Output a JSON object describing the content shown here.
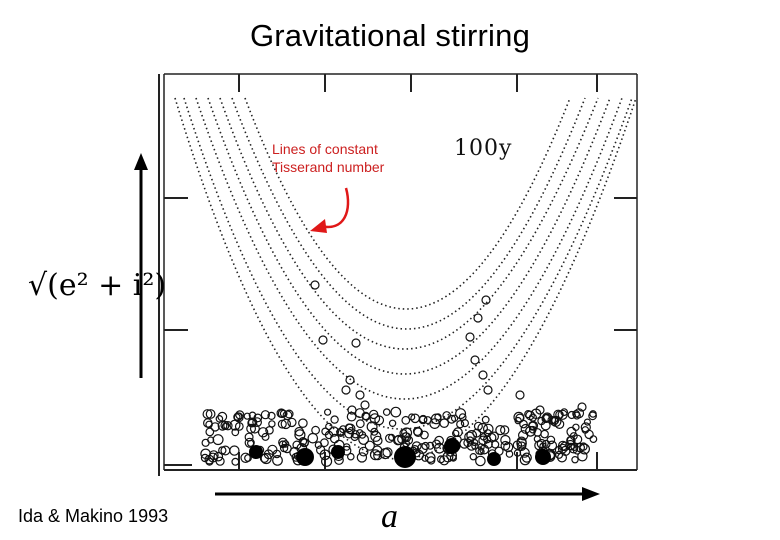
{
  "slide": {
    "title": "Gravitational stirring",
    "y_axis_label": "√(e² + i²)",
    "x_axis_label": "a",
    "citation": "Ida & Makino 1993",
    "figure": {
      "time_label": "100y",
      "annotation": {
        "text": "Lines of constant\nTisserand number",
        "color": "#cc2020"
      }
    }
  }
}
